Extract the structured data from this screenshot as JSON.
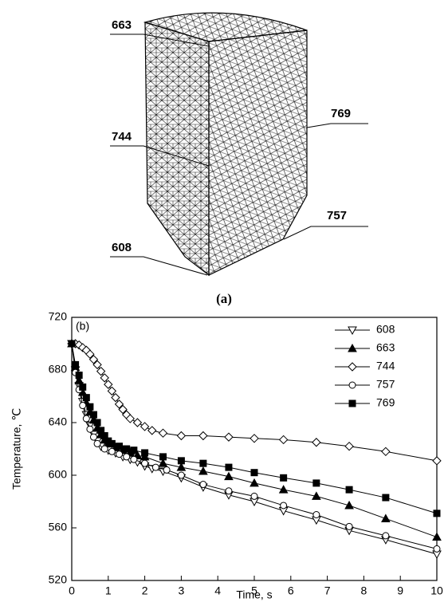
{
  "diagram": {
    "caption": "(a)",
    "node_labels": [
      "663",
      "744",
      "608",
      "769",
      "757"
    ]
  },
  "chart_data": {
    "type": "line",
    "annotation": "(b)",
    "x_label": "Time, s",
    "y_label": "Temperature, ℃",
    "xlim": [
      0,
      10
    ],
    "xticks": [
      0,
      1,
      2,
      3,
      4,
      5,
      6,
      7,
      8,
      9,
      10
    ],
    "ylim": [
      520,
      720
    ],
    "yticks": [
      520,
      560,
      600,
      640,
      680,
      720
    ],
    "legend": "upper right",
    "series": [
      {
        "name": "608",
        "color": "#000000",
        "marker": "triangle-down",
        "filled": false,
        "x": [
          0,
          0.1,
          0.2,
          0.3,
          0.4,
          0.5,
          0.6,
          0.7,
          0.8,
          1,
          1.2,
          1.4,
          1.6,
          1.8,
          2,
          2.2,
          2.5,
          3,
          3.6,
          4.3,
          5,
          5.8,
          6.7,
          7.6,
          8.6,
          10
        ],
        "values": [
          700,
          680,
          668,
          656,
          646,
          638,
          631,
          626,
          622,
          619,
          617,
          614,
          612,
          610,
          607,
          605,
          603,
          598,
          591,
          585,
          580,
          573,
          566,
          558,
          551,
          540
        ]
      },
      {
        "name": "663",
        "color": "#000000",
        "marker": "triangle",
        "filled": true,
        "x": [
          0,
          0.1,
          0.2,
          0.3,
          0.4,
          0.5,
          0.6,
          0.7,
          0.8,
          0.9,
          1,
          1.2,
          1.4,
          1.6,
          1.8,
          2,
          2.5,
          3,
          3.6,
          4.3,
          5,
          5.8,
          6.7,
          7.6,
          8.6,
          10
        ],
        "values": [
          700,
          682,
          672,
          663,
          655,
          648,
          642,
          636,
          631,
          627,
          624,
          621,
          619,
          617,
          615,
          614,
          609,
          606,
          603,
          599,
          594,
          589,
          584,
          577,
          567,
          553
        ]
      },
      {
        "name": "744",
        "color": "#000000",
        "marker": "diamond",
        "filled": false,
        "x": [
          0,
          0.1,
          0.2,
          0.3,
          0.4,
          0.5,
          0.6,
          0.7,
          0.8,
          0.9,
          1,
          1.1,
          1.2,
          1.3,
          1.4,
          1.5,
          1.6,
          1.8,
          2,
          2.2,
          2.5,
          3,
          3.6,
          4.3,
          5,
          5.8,
          6.7,
          7.6,
          8.6,
          10
        ],
        "values": [
          700,
          700,
          699,
          697,
          695,
          692,
          688,
          684,
          679,
          674,
          669,
          664,
          659,
          654,
          650,
          646,
          643,
          640,
          637,
          634,
          632,
          630,
          630,
          629,
          628,
          627,
          625,
          622,
          618,
          611
        ]
      },
      {
        "name": "757",
        "color": "#000000",
        "marker": "circle",
        "filled": false,
        "x": [
          0,
          0.1,
          0.2,
          0.3,
          0.4,
          0.5,
          0.6,
          0.7,
          0.9,
          1.1,
          1.3,
          1.5,
          1.7,
          2,
          2.3,
          2.6,
          3,
          3.6,
          4.3,
          5,
          5.8,
          6.7,
          7.6,
          8.6,
          10
        ],
        "values": [
          700,
          678,
          665,
          653,
          643,
          635,
          629,
          624,
          620,
          618,
          616,
          614,
          612,
          609,
          606,
          604,
          600,
          593,
          588,
          584,
          577,
          570,
          561,
          554,
          544
        ]
      },
      {
        "name": "769",
        "color": "#000000",
        "marker": "square",
        "filled": true,
        "x": [
          0,
          0.1,
          0.2,
          0.3,
          0.4,
          0.5,
          0.6,
          0.7,
          0.8,
          0.9,
          1,
          1.1,
          1.3,
          1.5,
          1.7,
          2,
          2.5,
          3,
          3.6,
          4.3,
          5,
          5.8,
          6.7,
          7.6,
          8.6,
          10
        ],
        "values": [
          700,
          684,
          676,
          667,
          659,
          652,
          646,
          640,
          634,
          630,
          626,
          624,
          622,
          620,
          619,
          617,
          614,
          611,
          609,
          606,
          602,
          598,
          594,
          589,
          583,
          571
        ]
      }
    ]
  }
}
